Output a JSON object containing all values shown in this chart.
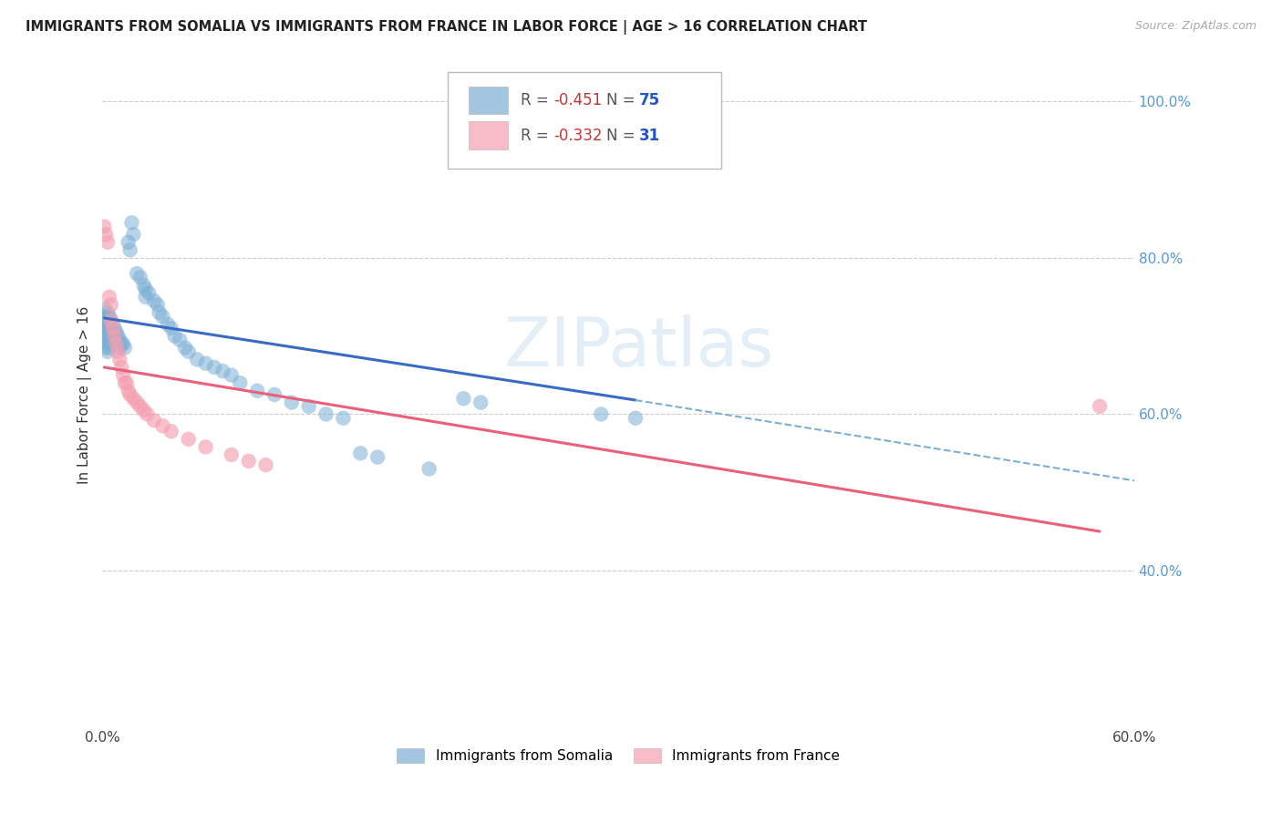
{
  "title": "IMMIGRANTS FROM SOMALIA VS IMMIGRANTS FROM FRANCE IN LABOR FORCE | AGE > 16 CORRELATION CHART",
  "source": "Source: ZipAtlas.com",
  "ylabel": "In Labor Force | Age > 16",
  "xlim": [
    0.0,
    0.6
  ],
  "ylim": [
    0.2,
    1.05
  ],
  "x_ticks": [
    0.0,
    0.1,
    0.2,
    0.3,
    0.4,
    0.5,
    0.6
  ],
  "x_tick_labels": [
    "0.0%",
    "",
    "",
    "",
    "",
    "",
    "60.0%"
  ],
  "y_ticks_right": [
    0.4,
    0.6,
    0.8,
    1.0
  ],
  "y_tick_labels_right": [
    "40.0%",
    "60.0%",
    "80.0%",
    "100.0%"
  ],
  "somalia_color": "#7bafd4",
  "somalia_line_color": "#3a6bc4",
  "france_color": "#f4a0b0",
  "france_line_color": "#e8607a",
  "somalia_R": -0.451,
  "somalia_N": 75,
  "france_R": -0.332,
  "france_N": 31,
  "watermark": "ZIPatlas",
  "somalia_points": [
    [
      0.001,
      0.72
    ],
    [
      0.001,
      0.735
    ],
    [
      0.001,
      0.71
    ],
    [
      0.002,
      0.725
    ],
    [
      0.002,
      0.715
    ],
    [
      0.002,
      0.7
    ],
    [
      0.002,
      0.695
    ],
    [
      0.002,
      0.685
    ],
    [
      0.003,
      0.73
    ],
    [
      0.003,
      0.72
    ],
    [
      0.003,
      0.71
    ],
    [
      0.003,
      0.7
    ],
    [
      0.003,
      0.69
    ],
    [
      0.003,
      0.68
    ],
    [
      0.004,
      0.725
    ],
    [
      0.004,
      0.715
    ],
    [
      0.004,
      0.705
    ],
    [
      0.004,
      0.695
    ],
    [
      0.004,
      0.685
    ],
    [
      0.005,
      0.72
    ],
    [
      0.005,
      0.71
    ],
    [
      0.005,
      0.7
    ],
    [
      0.005,
      0.69
    ],
    [
      0.006,
      0.715
    ],
    [
      0.006,
      0.705
    ],
    [
      0.006,
      0.695
    ],
    [
      0.007,
      0.71
    ],
    [
      0.007,
      0.7
    ],
    [
      0.008,
      0.705
    ],
    [
      0.008,
      0.695
    ],
    [
      0.009,
      0.7
    ],
    [
      0.01,
      0.695
    ],
    [
      0.01,
      0.685
    ],
    [
      0.011,
      0.69
    ],
    [
      0.012,
      0.69
    ],
    [
      0.013,
      0.685
    ],
    [
      0.015,
      0.82
    ],
    [
      0.016,
      0.81
    ],
    [
      0.017,
      0.845
    ],
    [
      0.018,
      0.83
    ],
    [
      0.02,
      0.78
    ],
    [
      0.022,
      0.775
    ],
    [
      0.024,
      0.765
    ],
    [
      0.025,
      0.76
    ],
    [
      0.025,
      0.75
    ],
    [
      0.027,
      0.755
    ],
    [
      0.03,
      0.745
    ],
    [
      0.032,
      0.74
    ],
    [
      0.033,
      0.73
    ],
    [
      0.035,
      0.725
    ],
    [
      0.038,
      0.715
    ],
    [
      0.04,
      0.71
    ],
    [
      0.042,
      0.7
    ],
    [
      0.045,
      0.695
    ],
    [
      0.048,
      0.685
    ],
    [
      0.05,
      0.68
    ],
    [
      0.055,
      0.67
    ],
    [
      0.06,
      0.665
    ],
    [
      0.065,
      0.66
    ],
    [
      0.07,
      0.655
    ],
    [
      0.075,
      0.65
    ],
    [
      0.08,
      0.64
    ],
    [
      0.09,
      0.63
    ],
    [
      0.1,
      0.625
    ],
    [
      0.11,
      0.615
    ],
    [
      0.12,
      0.61
    ],
    [
      0.13,
      0.6
    ],
    [
      0.14,
      0.595
    ],
    [
      0.15,
      0.55
    ],
    [
      0.16,
      0.545
    ],
    [
      0.19,
      0.53
    ],
    [
      0.21,
      0.62
    ],
    [
      0.22,
      0.615
    ],
    [
      0.29,
      0.6
    ],
    [
      0.31,
      0.595
    ]
  ],
  "france_points": [
    [
      0.001,
      0.84
    ],
    [
      0.002,
      0.83
    ],
    [
      0.003,
      0.82
    ],
    [
      0.004,
      0.75
    ],
    [
      0.005,
      0.74
    ],
    [
      0.005,
      0.72
    ],
    [
      0.006,
      0.71
    ],
    [
      0.007,
      0.7
    ],
    [
      0.008,
      0.69
    ],
    [
      0.009,
      0.68
    ],
    [
      0.01,
      0.67
    ],
    [
      0.011,
      0.66
    ],
    [
      0.012,
      0.65
    ],
    [
      0.013,
      0.64
    ],
    [
      0.014,
      0.64
    ],
    [
      0.015,
      0.63
    ],
    [
      0.016,
      0.625
    ],
    [
      0.018,
      0.62
    ],
    [
      0.02,
      0.615
    ],
    [
      0.022,
      0.61
    ],
    [
      0.024,
      0.605
    ],
    [
      0.026,
      0.6
    ],
    [
      0.03,
      0.592
    ],
    [
      0.035,
      0.585
    ],
    [
      0.04,
      0.578
    ],
    [
      0.05,
      0.568
    ],
    [
      0.06,
      0.558
    ],
    [
      0.075,
      0.548
    ],
    [
      0.085,
      0.54
    ],
    [
      0.095,
      0.535
    ],
    [
      0.58,
      0.61
    ]
  ],
  "somalia_trendline": [
    [
      0.001,
      0.723
    ],
    [
      0.31,
      0.618
    ]
  ],
  "somalia_trendline_ext": [
    [
      0.31,
      0.618
    ],
    [
      0.6,
      0.515
    ]
  ],
  "france_trendline": [
    [
      0.001,
      0.66
    ],
    [
      0.58,
      0.45
    ]
  ]
}
